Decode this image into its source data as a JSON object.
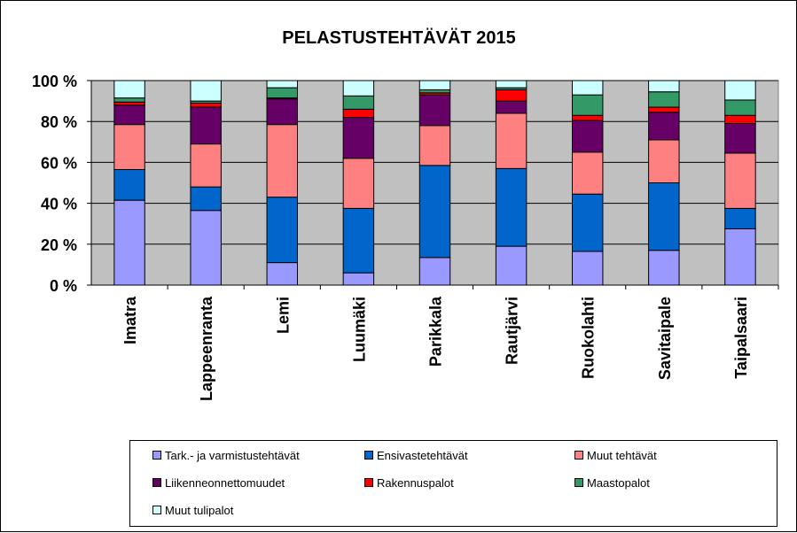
{
  "chart_data": {
    "type": "bar",
    "stacked": true,
    "percent": true,
    "title": "PELASTUSTEHTÄVÄT 2015",
    "categories": [
      "Imatra",
      "Lappeenranta",
      "Lemi",
      "Luumäki",
      "Parikkala",
      "Rautjärvi",
      "Ruokolahti",
      "Savitaipale",
      "Taipalsaari"
    ],
    "y_ticks": [
      "0 %",
      "20 %",
      "40 %",
      "60 %",
      "80 %",
      "100 %"
    ],
    "ylim": [
      0,
      100
    ],
    "grid": true,
    "legend_position": "bottom",
    "plot_background": "#C0C0C0",
    "series": [
      {
        "name": "Tark.- ja varmistustehtävät",
        "color": "#9999FF",
        "values": [
          41.5,
          36.5,
          11,
          6,
          13.5,
          19,
          16.5,
          17,
          27.5
        ]
      },
      {
        "name": "Ensivastetehtävät",
        "color": "#0066CC",
        "values": [
          15,
          11.5,
          32,
          31.5,
          45,
          38,
          28,
          33,
          10
        ]
      },
      {
        "name": "Muut tehtävät",
        "color": "#FF8080",
        "values": [
          22,
          21,
          35.5,
          24.5,
          19.5,
          27,
          20.5,
          21,
          27
        ]
      },
      {
        "name": "Liikenneonnettomuudet",
        "color": "#660066",
        "values": [
          9.5,
          18,
          12.5,
          20,
          15,
          6,
          15.5,
          13.5,
          14.5
        ]
      },
      {
        "name": "Rakennuspalot",
        "color": "#FF0000",
        "values": [
          1.5,
          2,
          0.5,
          4,
          1,
          5.5,
          2.5,
          2.5,
          4
        ]
      },
      {
        "name": "Maastopalot",
        "color": "#339966",
        "values": [
          2,
          1,
          5,
          6.5,
          1.5,
          1,
          10,
          7.5,
          7.5
        ]
      },
      {
        "name": "Muut tulipalot",
        "color": "#CCFFFF",
        "values": [
          8.5,
          10,
          3.5,
          7.5,
          4.5,
          3.5,
          7,
          5.5,
          9.5
        ]
      }
    ]
  }
}
